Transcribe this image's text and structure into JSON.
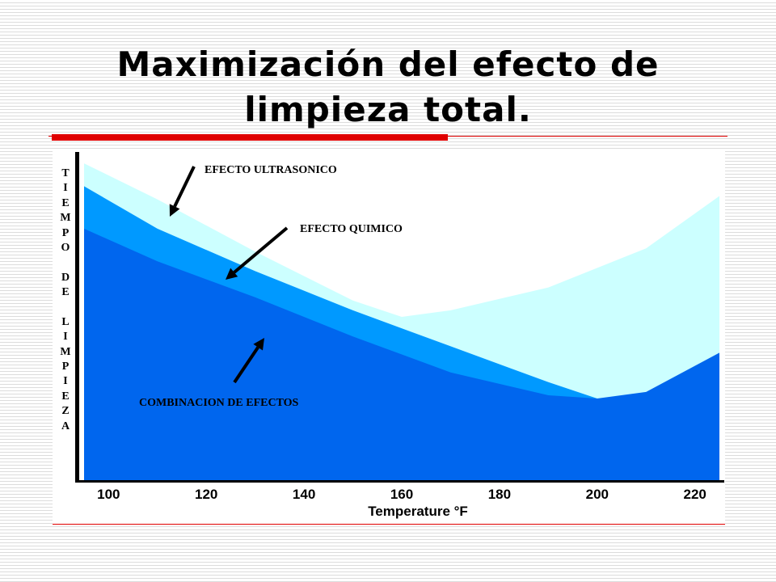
{
  "slide": {
    "title_lines": [
      "Maximización del efecto de",
      "limpieza total."
    ]
  },
  "colors": {
    "ultrasonic_band": "#ccffff",
    "chemical_band": "#0099ff",
    "combined_area": "#0066ee",
    "accent_rule": "#e00000"
  },
  "chart_data": {
    "type": "area",
    "title": "",
    "xlabel": "Temperature °F",
    "ylabel": "TIEMPO DE LIMPIEZA",
    "xlim": [
      94,
      226
    ],
    "ylim": [
      0,
      100
    ],
    "xticks": [
      "100",
      "120",
      "140",
      "160",
      "180",
      "200",
      "220"
    ],
    "series": [
      {
        "name": "EFECTO ULTRASONICO",
        "x": [
          95,
          110,
          130,
          150,
          160,
          170,
          190,
          210,
          225
        ],
        "y": [
          97,
          86,
          70,
          55,
          50,
          52,
          59,
          71,
          87
        ]
      },
      {
        "name": "EFECTO QUIMICO",
        "x": [
          95,
          110,
          130,
          150,
          170,
          190,
          210,
          225
        ],
        "y": [
          90,
          77,
          64,
          52,
          41,
          30,
          20,
          12
        ]
      },
      {
        "name": "COMBINACION DE EFECTOS",
        "x": [
          95,
          110,
          130,
          150,
          170,
          190,
          200,
          210,
          225
        ],
        "y": [
          77,
          67,
          56,
          44,
          33,
          26,
          25,
          27,
          39
        ]
      }
    ],
    "annotations": [
      "EFECTO ULTRASONICO",
      "EFECTO QUIMICO",
      "COMBINACION DE EFECTOS"
    ]
  }
}
